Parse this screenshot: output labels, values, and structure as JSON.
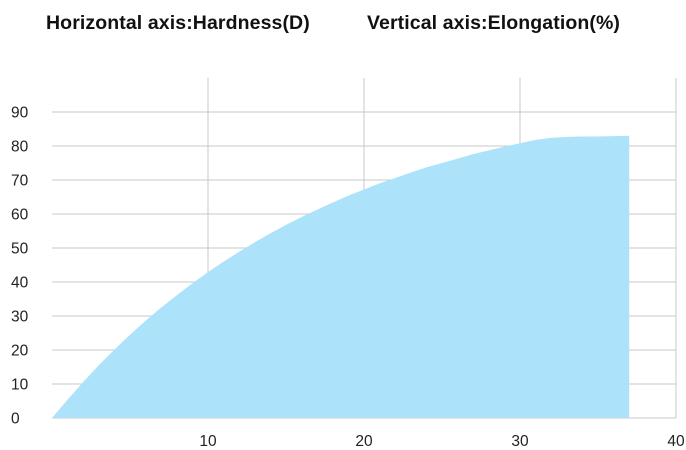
{
  "title": {
    "horizontal": "Horizontal axis:Hardness(D)",
    "vertical": "Vertical axis:Elongation(%)"
  },
  "chart_data": {
    "type": "area",
    "title": "",
    "xlabel": "Hardness(D)",
    "ylabel": "Elongation(%)",
    "xlim": [
      0,
      40
    ],
    "ylim": [
      0,
      100
    ],
    "x_ticks": [
      10,
      20,
      30,
      40
    ],
    "y_ticks": [
      0,
      10,
      20,
      30,
      40,
      50,
      60,
      70,
      80,
      90
    ],
    "grid": true,
    "legend": "none",
    "series": [
      {
        "color": "#ace2fa",
        "x": [
          0,
          1,
          2,
          3,
          4,
          5,
          6,
          7,
          8,
          9,
          10,
          11,
          12,
          13,
          14,
          15,
          16,
          17,
          18,
          19,
          20,
          21,
          22,
          23,
          24,
          25,
          26,
          27,
          28,
          29,
          30,
          31,
          32,
          33,
          34,
          35,
          36,
          37
        ],
        "y": [
          0.0,
          5.4,
          10.6,
          15.5,
          20.1,
          24.5,
          28.6,
          32.5,
          36.1,
          39.6,
          42.9,
          46.0,
          48.9,
          51.7,
          54.3,
          56.8,
          59.1,
          61.3,
          63.4,
          65.4,
          67.2,
          69.0,
          70.6,
          72.2,
          73.7,
          75.0,
          76.3,
          77.6,
          78.7,
          79.8,
          80.8,
          81.8,
          82.4,
          82.7,
          82.8,
          82.8,
          82.9,
          83.0
        ]
      }
    ]
  }
}
